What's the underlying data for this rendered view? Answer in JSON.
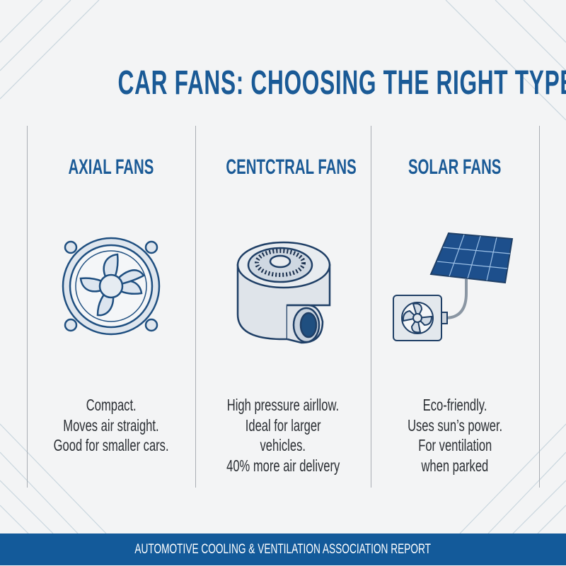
{
  "title": "CAR FANS: CHOOSING THE RIGHT TYPE",
  "colors": {
    "accent": "#1a5a96",
    "footer": "#135a9a",
    "background": "#f3f4f5"
  },
  "columns": [
    {
      "heading": "AXIAL FANS",
      "icon": "axial-fan-icon",
      "lines": [
        "Compact.",
        "Moves air straight.",
        "Good for smaller cars."
      ]
    },
    {
      "heading": "CENTCTRAL FANS",
      "icon": "centrifugal-fan-icon",
      "lines": [
        "High pressure airllow.",
        "Ideal for larger",
        "vehicles.",
        "40% more air delivery"
      ]
    },
    {
      "heading": "SOLAR FANS",
      "icon": "solar-fan-icon",
      "lines": [
        "Eco-friendly.",
        "Uses sun’s power.",
        "For ventilation",
        "when parked"
      ]
    }
  ],
  "footer": "AUTOMOTIVE COOLING & VENTILATION ASSOCIATION REPORT"
}
